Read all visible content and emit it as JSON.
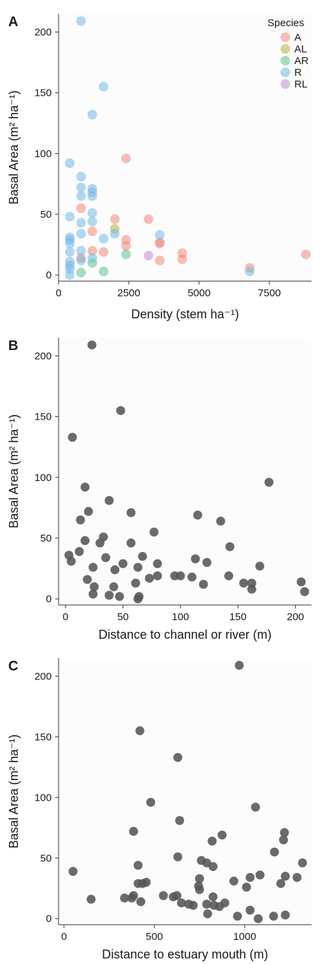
{
  "chart_data": [
    {
      "type": "scatter",
      "panel_label": "A",
      "xlabel": "Density (stem ha⁻¹)",
      "ylabel": "Basal Area (m² ha⁻¹)",
      "xlim": [
        0,
        9000
      ],
      "ylim": [
        -5,
        215
      ],
      "xticks": [
        0,
        2500,
        5000,
        7500
      ],
      "xtick_labels": [
        "0",
        "2500",
        "5000",
        "7500"
      ],
      "yticks": [
        0,
        50,
        100,
        150,
        200
      ],
      "ytick_labels": [
        "0",
        "50",
        "100",
        "150",
        "200"
      ],
      "grid": false,
      "legend": {
        "title": "Species",
        "position": "top-right"
      },
      "series": [
        {
          "name": "A",
          "color": "#f08878",
          "points": [
            [
              800,
              55
            ],
            [
              800,
              14
            ],
            [
              1200,
              36
            ],
            [
              1200,
              20
            ],
            [
              1600,
              19
            ],
            [
              2000,
              46
            ],
            [
              2400,
              96
            ],
            [
              2400,
              29
            ],
            [
              2400,
              24
            ],
            [
              3200,
              46
            ],
            [
              3600,
              27
            ],
            [
              3600,
              26
            ],
            [
              3600,
              12
            ],
            [
              4400,
              18
            ],
            [
              4400,
              13
            ],
            [
              6800,
              6
            ],
            [
              8800,
              17
            ]
          ]
        },
        {
          "name": "AL",
          "color": "#b8b043",
          "points": [
            [
              2000,
              38
            ]
          ]
        },
        {
          "name": "AR",
          "color": "#5cc28a",
          "points": [
            [
              800,
              2
            ],
            [
              1200,
              10
            ],
            [
              1600,
              3
            ],
            [
              2400,
              17
            ]
          ]
        },
        {
          "name": "R",
          "color": "#72b8e8",
          "points": [
            [
              800,
              209
            ],
            [
              1600,
              155
            ],
            [
              1200,
              132
            ],
            [
              400,
              92
            ],
            [
              800,
              81
            ],
            [
              800,
              72
            ],
            [
              1200,
              71
            ],
            [
              1200,
              68
            ],
            [
              800,
              65
            ],
            [
              1200,
              65
            ],
            [
              400,
              48
            ],
            [
              1200,
              51
            ],
            [
              800,
              43
            ],
            [
              1200,
              44
            ],
            [
              800,
              34
            ],
            [
              1600,
              30
            ],
            [
              2000,
              34
            ],
            [
              3600,
              33
            ],
            [
              400,
              31
            ],
            [
              400,
              29
            ],
            [
              400,
              26
            ],
            [
              400,
              19
            ],
            [
              800,
              20
            ],
            [
              800,
              12
            ],
            [
              1200,
              14
            ],
            [
              400,
              11
            ],
            [
              400,
              8
            ],
            [
              400,
              5
            ],
            [
              400,
              0
            ],
            [
              6800,
              3
            ]
          ]
        },
        {
          "name": "RL",
          "color": "#c48ad0",
          "points": [
            [
              3200,
              16
            ]
          ]
        }
      ]
    },
    {
      "type": "scatter",
      "panel_label": "B",
      "xlabel": "Distance to channel or river (m)",
      "ylabel": "Basal Area (m² ha⁻¹)",
      "xlim": [
        -6,
        214
      ],
      "ylim": [
        -5,
        215
      ],
      "xticks": [
        0,
        50,
        100,
        150,
        200
      ],
      "xtick_labels": [
        "0",
        "50",
        "100",
        "150",
        "200"
      ],
      "yticks": [
        0,
        50,
        100,
        150,
        200
      ],
      "ytick_labels": [
        "0",
        "50",
        "100",
        "150",
        "200"
      ],
      "grid": false,
      "color": "#555555",
      "points": [
        [
          23,
          209
        ],
        [
          48,
          155
        ],
        [
          6,
          133
        ],
        [
          17,
          92
        ],
        [
          177,
          96
        ],
        [
          38,
          81
        ],
        [
          13,
          65
        ],
        [
          20,
          72
        ],
        [
          57,
          71
        ],
        [
          115,
          69
        ],
        [
          77,
          55
        ],
        [
          135,
          64
        ],
        [
          33,
          51
        ],
        [
          17,
          48
        ],
        [
          3,
          36
        ],
        [
          12,
          39
        ],
        [
          30,
          46
        ],
        [
          57,
          46
        ],
        [
          143,
          43
        ],
        [
          5,
          31
        ],
        [
          24,
          26
        ],
        [
          35,
          34
        ],
        [
          43,
          24
        ],
        [
          50,
          29
        ],
        [
          63,
          26
        ],
        [
          67,
          35
        ],
        [
          73,
          17
        ],
        [
          80,
          19
        ],
        [
          80,
          29
        ],
        [
          95,
          19
        ],
        [
          100,
          19
        ],
        [
          110,
          18
        ],
        [
          113,
          33
        ],
        [
          123,
          30
        ],
        [
          120,
          12
        ],
        [
          142,
          19
        ],
        [
          155,
          13
        ],
        [
          162,
          13
        ],
        [
          162,
          8
        ],
        [
          169,
          27
        ],
        [
          205,
          14
        ],
        [
          208,
          6
        ],
        [
          19,
          16
        ],
        [
          25,
          10
        ],
        [
          24,
          4
        ],
        [
          38,
          3
        ],
        [
          42,
          10
        ],
        [
          47,
          2
        ],
        [
          61,
          13
        ],
        [
          63,
          0
        ],
        [
          64,
          2
        ]
      ]
    },
    {
      "type": "scatter",
      "panel_label": "C",
      "xlabel": "Distance to estuary mouth (m)",
      "ylabel": "Basal Area (m² ha⁻¹)",
      "xlim": [
        -30,
        1370
      ],
      "ylim": [
        -5,
        215
      ],
      "xticks": [
        0,
        500,
        1000
      ],
      "xtick_labels": [
        "0",
        "500",
        "1000"
      ],
      "yticks": [
        0,
        50,
        100,
        150,
        200
      ],
      "ytick_labels": [
        "0",
        "50",
        "100",
        "150",
        "200"
      ],
      "grid": false,
      "color": "#555555",
      "points": [
        [
          970,
          209
        ],
        [
          420,
          155
        ],
        [
          630,
          133
        ],
        [
          480,
          96
        ],
        [
          1060,
          92
        ],
        [
          640,
          81
        ],
        [
          385,
          72
        ],
        [
          1220,
          71
        ],
        [
          875,
          69
        ],
        [
          1215,
          65
        ],
        [
          820,
          64
        ],
        [
          630,
          51
        ],
        [
          1165,
          55
        ],
        [
          760,
          48
        ],
        [
          790,
          46
        ],
        [
          410,
          44
        ],
        [
          825,
          43
        ],
        [
          1320,
          46
        ],
        [
          50,
          39
        ],
        [
          1030,
          34
        ],
        [
          1085,
          36
        ],
        [
          1225,
          35
        ],
        [
          1290,
          34
        ],
        [
          750,
          33
        ],
        [
          940,
          31
        ],
        [
          410,
          29
        ],
        [
          1200,
          29
        ],
        [
          435,
          29
        ],
        [
          455,
          30
        ],
        [
          745,
          27
        ],
        [
          1010,
          26
        ],
        [
          750,
          24
        ],
        [
          550,
          19
        ],
        [
          605,
          18
        ],
        [
          625,
          19
        ],
        [
          825,
          18
        ],
        [
          335,
          17
        ],
        [
          375,
          17
        ],
        [
          385,
          19
        ],
        [
          150,
          16
        ],
        [
          425,
          14
        ],
        [
          650,
          13
        ],
        [
          690,
          12
        ],
        [
          715,
          11
        ],
        [
          790,
          12
        ],
        [
          830,
          11
        ],
        [
          860,
          10
        ],
        [
          890,
          13
        ],
        [
          1030,
          7
        ],
        [
          795,
          4
        ],
        [
          960,
          2
        ],
        [
          1075,
          0
        ],
        [
          1160,
          2
        ],
        [
          1225,
          3
        ]
      ]
    }
  ]
}
